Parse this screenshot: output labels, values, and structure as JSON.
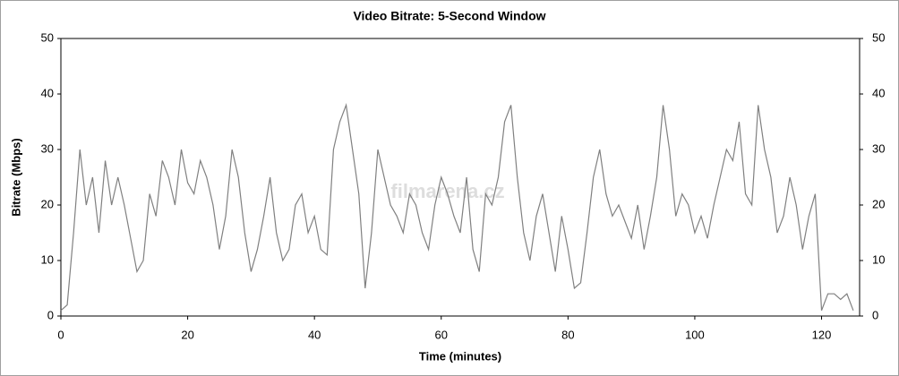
{
  "chart_data": {
    "type": "line",
    "title": "Video Bitrate: 5-Second Window",
    "x_label": "Time (minutes)",
    "y_label": "Bitrate (Mbps)",
    "watermark": "filmarena.cz",
    "x": [
      0,
      1,
      2,
      3,
      4,
      5,
      6,
      7,
      8,
      9,
      10,
      11,
      12,
      13,
      14,
      15,
      16,
      17,
      18,
      19,
      20,
      21,
      22,
      23,
      24,
      25,
      26,
      27,
      28,
      29,
      30,
      31,
      32,
      33,
      34,
      35,
      36,
      37,
      38,
      39,
      40,
      41,
      42,
      43,
      44,
      45,
      46,
      47,
      48,
      49,
      50,
      51,
      52,
      53,
      54,
      55,
      56,
      57,
      58,
      59,
      60,
      61,
      62,
      63,
      64,
      65,
      66,
      67,
      68,
      69,
      70,
      71,
      72,
      73,
      74,
      75,
      76,
      77,
      78,
      79,
      80,
      81,
      82,
      83,
      84,
      85,
      86,
      87,
      88,
      89,
      90,
      91,
      92,
      93,
      94,
      95,
      96,
      97,
      98,
      99,
      100,
      101,
      102,
      103,
      104,
      105,
      106,
      107,
      108,
      109,
      110,
      111,
      112,
      113,
      114,
      115,
      116,
      117,
      118,
      119,
      120,
      121,
      122,
      123,
      124,
      125
    ],
    "series": [
      {
        "name": "Video Bitrate",
        "color": "#808080",
        "values": [
          1,
          2,
          15,
          30,
          20,
          25,
          15,
          28,
          20,
          25,
          20,
          14,
          8,
          10,
          22,
          18,
          28,
          25,
          20,
          30,
          24,
          22,
          28,
          25,
          20,
          12,
          18,
          30,
          25,
          15,
          8,
          12,
          18,
          25,
          15,
          10,
          12,
          20,
          22,
          15,
          18,
          12,
          11,
          30,
          35,
          38,
          30,
          22,
          5,
          15,
          30,
          25,
          20,
          18,
          15,
          22,
          20,
          15,
          12,
          20,
          25,
          22,
          18,
          15,
          25,
          12,
          8,
          22,
          20,
          25,
          35,
          38,
          25,
          15,
          10,
          18,
          22,
          15,
          8,
          18,
          12,
          5,
          6,
          15,
          25,
          30,
          22,
          18,
          20,
          17,
          14,
          20,
          12,
          18,
          25,
          38,
          30,
          18,
          22,
          20,
          15,
          18,
          14,
          20,
          25,
          30,
          28,
          35,
          22,
          20,
          38,
          30,
          25,
          15,
          18,
          25,
          20,
          12,
          18,
          22,
          1,
          4,
          4,
          3,
          4,
          1
        ]
      }
    ],
    "xlim": [
      0,
      126
    ],
    "ylim": [
      0,
      50
    ],
    "xticks": [
      0,
      20,
      40,
      60,
      80,
      100,
      120
    ],
    "yticks": [
      0,
      10,
      20,
      30,
      40,
      50
    ],
    "y2lim": [
      0,
      50
    ],
    "y2ticks": [
      0,
      10,
      20,
      30,
      40,
      50
    ],
    "grid": false
  }
}
